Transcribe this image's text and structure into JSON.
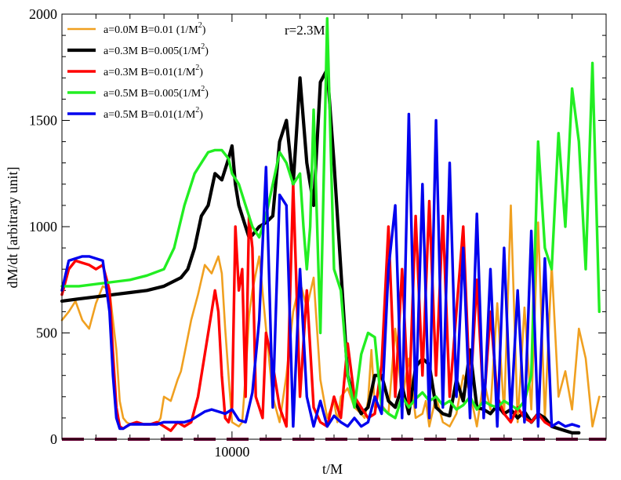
{
  "chart_data": {
    "type": "line",
    "title": "",
    "annotation": "r=2.3M",
    "xlabel": "t/M",
    "ylabel": "dM/dt [arbitrary unit]",
    "xlim": [
      5000,
      21000
    ],
    "ylim": [
      0,
      2000
    ],
    "x_tick_values": [
      6000,
      7000,
      8000,
      9000,
      10000,
      11000,
      12000,
      13000,
      14000,
      15000,
      16000,
      17000,
      18000,
      19000,
      20000
    ],
    "x_tick_labels": [
      "",
      "",
      "",
      "",
      "10000",
      "",
      "",
      "",
      "",
      "",
      "",
      "",
      "",
      "",
      ""
    ],
    "y_ticks": [
      0,
      500,
      1000,
      1500,
      2000
    ],
    "y_minor_ticks": [
      100,
      200,
      300,
      400,
      600,
      700,
      800,
      900,
      1100,
      1200,
      1300,
      1400,
      1600,
      1700,
      1800,
      1900
    ],
    "reference_line": {
      "y": 0,
      "color": "#660033",
      "style": "dashed"
    },
    "series": [
      {
        "name": "a=0.0M  B=0.01 (1/M",
        "sup": "2",
        "close": ")",
        "color": "#f0a020",
        "width": 2.6,
        "x": [
          5000,
          5200,
          5400,
          5600,
          5800,
          6000,
          6200,
          6400,
          6600,
          6700,
          6800,
          6900,
          7000,
          7100,
          7200,
          7400,
          7600,
          7800,
          7900,
          8000,
          8200,
          8400,
          8500,
          8600,
          8800,
          9000,
          9200,
          9400,
          9600,
          9700,
          9800,
          9900,
          10000,
          10200,
          10300,
          10400,
          10500,
          10600,
          10800,
          11000,
          11200,
          11400,
          11600,
          11800,
          12000,
          12200,
          12400,
          12600,
          12800,
          13000,
          13100,
          13200,
          13400,
          13600,
          13800,
          13900,
          14000,
          14100,
          14200,
          14400,
          14600,
          14800,
          15000,
          15200,
          15400,
          15600,
          15700,
          15800,
          16000,
          16200,
          16400,
          16600,
          16800,
          17000,
          17200,
          17400,
          17600,
          17800,
          18000,
          18200,
          18400,
          18600,
          18800,
          19000,
          19200,
          19400,
          19600,
          19800,
          20000,
          20200,
          20400,
          20600,
          20800
        ],
        "y": [
          560,
          600,
          650,
          560,
          520,
          640,
          720,
          700,
          420,
          180,
          100,
          80,
          70,
          70,
          70,
          70,
          70,
          70,
          100,
          200,
          180,
          280,
          320,
          400,
          560,
          680,
          820,
          780,
          860,
          780,
          520,
          300,
          80,
          60,
          80,
          300,
          580,
          700,
          860,
          520,
          200,
          80,
          300,
          600,
          740,
          620,
          760,
          280,
          100,
          180,
          80,
          200,
          240,
          150,
          120,
          100,
          180,
          420,
          150,
          160,
          120,
          520,
          180,
          380,
          100,
          120,
          180,
          60,
          200,
          80,
          60,
          120,
          300,
          220,
          60,
          280,
          140,
          640,
          120,
          1100,
          80,
          620,
          140,
          1020,
          100,
          820,
          200,
          320,
          140,
          520,
          380,
          60,
          200
        ]
      },
      {
        "name": "a=0.3M  B=0.005(1/M",
        "sup": "2",
        "close": ")",
        "color": "#000000",
        "width": 4.2,
        "x": [
          5000,
          5500,
          6000,
          6500,
          7000,
          7500,
          8000,
          8500,
          8700,
          8900,
          9100,
          9300,
          9500,
          9700,
          9900,
          10000,
          10100,
          10200,
          10300,
          10400,
          10500,
          10600,
          10800,
          11000,
          11200,
          11400,
          11600,
          11800,
          12000,
          12200,
          12400,
          12600,
          12800,
          13000,
          13200,
          13400,
          13600,
          13800,
          14000,
          14200,
          14400,
          14600,
          14800,
          15000,
          15200,
          15400,
          15600,
          15800,
          16000,
          16200,
          16400,
          16600,
          16800,
          17000,
          17200,
          17400,
          17600,
          17800,
          18000,
          18200,
          18400,
          18600,
          18800,
          19000,
          19200,
          19400,
          19600,
          19800,
          20000,
          20200
        ],
        "y": [
          650,
          660,
          670,
          680,
          690,
          700,
          720,
          760,
          800,
          900,
          1050,
          1100,
          1250,
          1220,
          1320,
          1380,
          1200,
          1100,
          1050,
          1000,
          950,
          960,
          1000,
          1020,
          1050,
          1400,
          1500,
          1200,
          1700,
          1300,
          1100,
          1680,
          1740,
          1300,
          800,
          300,
          180,
          120,
          150,
          300,
          300,
          180,
          150,
          250,
          120,
          340,
          380,
          350,
          150,
          120,
          110,
          280,
          180,
          420,
          150,
          140,
          120,
          160,
          120,
          140,
          100,
          130,
          80,
          120,
          100,
          60,
          50,
          40,
          30,
          30
        ]
      },
      {
        "name": "a=0.3M  B=0.01(1/M",
        "sup": "2",
        "close": ")",
        "color": "#ff0000",
        "width": 3.4,
        "x": [
          5000,
          5200,
          5400,
          5600,
          5800,
          6000,
          6200,
          6400,
          6500,
          6600,
          6700,
          6800,
          6900,
          7000,
          7200,
          7400,
          7600,
          7800,
          8000,
          8200,
          8400,
          8600,
          8800,
          9000,
          9200,
          9400,
          9500,
          9600,
          9700,
          9800,
          9900,
          10000,
          10100,
          10200,
          10300,
          10400,
          10500,
          10600,
          10700,
          10800,
          10900,
          11000,
          11200,
          11400,
          11600,
          11800,
          12000,
          12200,
          12400,
          12600,
          12800,
          13000,
          13200,
          13400,
          13600,
          13800,
          14000,
          14200,
          14400,
          14600,
          14800,
          15000,
          15200,
          15400,
          15600,
          15800,
          16000,
          16200,
          16400,
          16600,
          16800,
          17000,
          17200,
          17400,
          17600,
          17800,
          18000,
          18200,
          18400,
          18600,
          18800,
          19000,
          19200,
          19400
        ],
        "y": [
          680,
          800,
          840,
          830,
          820,
          800,
          820,
          700,
          400,
          150,
          60,
          50,
          60,
          70,
          80,
          70,
          70,
          80,
          60,
          40,
          80,
          60,
          80,
          200,
          400,
          600,
          700,
          600,
          300,
          100,
          80,
          150,
          1000,
          700,
          800,
          200,
          1050,
          900,
          200,
          150,
          100,
          500,
          350,
          150,
          60,
          1200,
          200,
          700,
          150,
          80,
          60,
          200,
          100,
          450,
          200,
          150,
          100,
          120,
          350,
          1000,
          200,
          800,
          150,
          1050,
          300,
          1120,
          300,
          1050,
          200,
          600,
          1000,
          200,
          750,
          150,
          600,
          200,
          120,
          80,
          150,
          100,
          80,
          120,
          80,
          60
        ]
      },
      {
        "name": "a=0.5M  B=0.005(1/M",
        "sup": "2",
        "close": ")",
        "color": "#22ee22",
        "width": 3.4,
        "x": [
          5000,
          5500,
          6000,
          6500,
          7000,
          7500,
          8000,
          8300,
          8600,
          8900,
          9100,
          9300,
          9500,
          9700,
          9900,
          10000,
          10200,
          10400,
          10600,
          10800,
          11000,
          11200,
          11400,
          11600,
          11800,
          12000,
          12100,
          12200,
          12300,
          12400,
          12600,
          12800,
          13000,
          13200,
          13400,
          13600,
          13800,
          14000,
          14200,
          14400,
          14600,
          14800,
          15000,
          15200,
          15400,
          15600,
          15800,
          16000,
          16200,
          16400,
          16600,
          16800,
          17000,
          17200,
          17400,
          17600,
          17800,
          18000,
          18200,
          18400,
          18600,
          18800,
          19000,
          19200,
          19400,
          19600,
          19800,
          20000,
          20200,
          20400,
          20600,
          20800
        ],
        "y": [
          720,
          720,
          730,
          740,
          750,
          770,
          800,
          900,
          1100,
          1250,
          1300,
          1350,
          1360,
          1360,
          1320,
          1250,
          1200,
          1100,
          1000,
          950,
          1050,
          1200,
          1350,
          1300,
          1200,
          1250,
          1000,
          800,
          1000,
          1550,
          500,
          1980,
          800,
          700,
          300,
          150,
          400,
          500,
          480,
          150,
          120,
          100,
          200,
          150,
          190,
          220,
          180,
          200,
          160,
          180,
          140,
          160,
          200,
          140,
          180,
          160,
          150,
          180,
          160,
          140,
          180,
          300,
          1400,
          900,
          800,
          1440,
          1000,
          1650,
          1400,
          800,
          1770,
          600
        ]
      },
      {
        "name": "a=0.5M  B=0.01(1/M",
        "sup": "2",
        "close": ")",
        "color": "#0000ee",
        "width": 3.4,
        "x": [
          5000,
          5200,
          5400,
          5600,
          5800,
          6000,
          6200,
          6400,
          6500,
          6600,
          6700,
          6800,
          6900,
          7000,
          7200,
          7400,
          7600,
          7800,
          8000,
          8200,
          8400,
          8600,
          8800,
          9000,
          9200,
          9400,
          9600,
          9800,
          10000,
          10200,
          10400,
          10600,
          10800,
          11000,
          11200,
          11400,
          11600,
          11800,
          12000,
          12200,
          12400,
          12600,
          12800,
          13000,
          13200,
          13400,
          13600,
          13800,
          14000,
          14200,
          14400,
          14600,
          14800,
          15000,
          15200,
          15400,
          15600,
          15800,
          16000,
          16200,
          16400,
          16600,
          16800,
          17000,
          17200,
          17400,
          17600,
          17800,
          18000,
          18200,
          18400,
          18600,
          18800,
          19000,
          19200,
          19400,
          19600,
          19800,
          20000,
          20200
        ],
        "y": [
          700,
          840,
          850,
          860,
          860,
          850,
          840,
          600,
          300,
          100,
          50,
          50,
          60,
          70,
          70,
          70,
          70,
          70,
          80,
          80,
          80,
          80,
          90,
          110,
          130,
          140,
          130,
          120,
          140,
          90,
          80,
          220,
          560,
          1280,
          150,
          1150,
          1100,
          60,
          800,
          200,
          60,
          180,
          60,
          110,
          80,
          60,
          100,
          60,
          80,
          200,
          120,
          800,
          1100,
          100,
          1530,
          150,
          1200,
          100,
          1500,
          150,
          1300,
          200,
          900,
          100,
          1060,
          100,
          800,
          60,
          900,
          100,
          700,
          80,
          980,
          60,
          850,
          60,
          80,
          60,
          70,
          60
        ]
      }
    ]
  }
}
